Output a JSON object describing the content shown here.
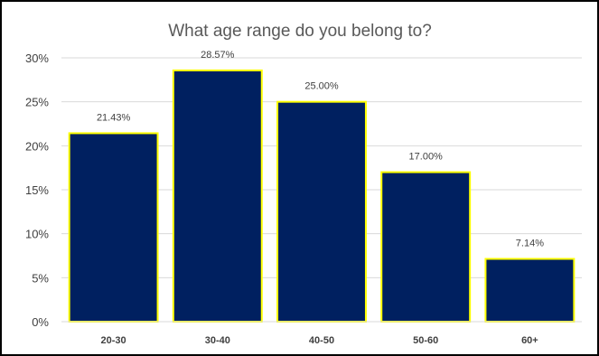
{
  "chart_data": {
    "type": "bar",
    "title": "What age range do you belong to?",
    "xlabel": "",
    "ylabel": "",
    "categories": [
      "20-30",
      "30-40",
      "40-50",
      "50-60",
      "60+"
    ],
    "values": [
      21.43,
      28.57,
      25.0,
      17.0,
      7.14
    ],
    "data_labels": [
      "21.43%",
      "28.57%",
      "25.00%",
      "17.00%",
      "7.14%"
    ],
    "ylim": [
      0,
      30
    ],
    "yticks": [
      0,
      5,
      10,
      15,
      20,
      25,
      30
    ],
    "ytick_labels": [
      "0%",
      "5%",
      "10%",
      "15%",
      "20%",
      "25%",
      "30%"
    ],
    "grid": true,
    "legend": "none",
    "colors": {
      "bar_fill": "#002060",
      "bar_edge": "#FFFF00",
      "gridline": "#D9D9D9",
      "text": "#404040",
      "title": "#595959"
    }
  }
}
